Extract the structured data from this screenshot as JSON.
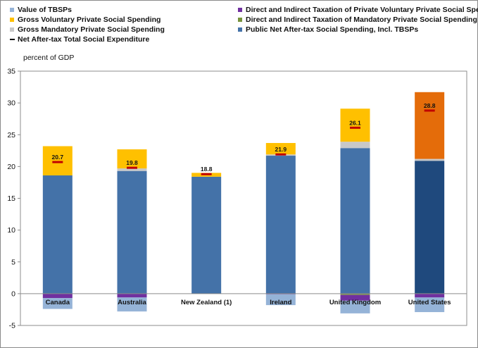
{
  "chart_data": {
    "type": "bar",
    "stacked": true,
    "ylabel": "percent of GDP",
    "ylim": [
      -5,
      35
    ],
    "yticks": [
      "35",
      "30",
      "25",
      "20",
      "15",
      "10",
      "5",
      "0",
      "-5"
    ],
    "categories": [
      "Canada",
      "Australia",
      "New Zealand (1)",
      "Ireland",
      "United Kingdom",
      "United States"
    ],
    "legend": [
      {
        "key": "tbsp",
        "label": "Value of TBSPs",
        "color": "#95b3d7",
        "kind": "box"
      },
      {
        "key": "gvol",
        "label": "Gross Voluntary Private Social Spending",
        "color": "#ffc000",
        "kind": "box"
      },
      {
        "key": "gmand",
        "label": "Gross Mandatory Private Social Spending",
        "color": "#c8c8c8",
        "kind": "box"
      },
      {
        "key": "net",
        "label": "Net After-tax Total Social Expenditure",
        "color": "#111111",
        "kind": "line"
      },
      {
        "key": "taxvol",
        "label": "Direct and Indirect Taxation of Private Voluntary Private Social Spending",
        "color": "#7030a0",
        "kind": "box"
      },
      {
        "key": "taxmand",
        "label": "Direct and Indirect Taxation of Mandatory Private Social Spending",
        "color": "#77933c",
        "kind": "box"
      },
      {
        "key": "pub",
        "label": "Public Net After-tax Social Spending, Incl. TBSPs",
        "color": "#4472a8",
        "kind": "box"
      }
    ],
    "colors": {
      "public": "#4472a8",
      "public_us": "#1f497d",
      "mandatory": "#c8c8c8",
      "voluntary": "#ffc000",
      "voluntary_us": "#e46c0a",
      "tax_voluntary": "#7030a0",
      "tax_mandatory": "#77933c",
      "tbsp": "#95b3d7",
      "marker": "#c00000"
    },
    "series": [
      {
        "name": "Public Net After-tax Social Spending, Incl. TBSPs",
        "values": [
          18.6,
          19.3,
          18.4,
          21.7,
          22.9,
          20.9
        ]
      },
      {
        "name": "Gross Mandatory Private Social Spending",
        "values": [
          0.0,
          0.4,
          0.0,
          0.2,
          1.0,
          0.3
        ]
      },
      {
        "name": "Gross Voluntary Private Social Spending",
        "values": [
          4.6,
          3.0,
          0.6,
          1.8,
          5.2,
          10.5
        ]
      },
      {
        "name": "Direct and Indirect Taxation of Private Voluntary Private Social Spending",
        "values": [
          -0.7,
          -0.6,
          0.0,
          -0.1,
          -0.9,
          -0.6
        ]
      },
      {
        "name": "Direct and Indirect Taxation of Mandatory Private Social Spending",
        "values": [
          0.0,
          0.0,
          0.0,
          0.0,
          -0.2,
          0.0
        ]
      },
      {
        "name": "Value of TBSPs",
        "values": [
          -1.7,
          -2.2,
          0.0,
          -1.7,
          -2.0,
          -2.3
        ]
      }
    ],
    "net_total": {
      "name": "Net After-tax Total Social Expenditure",
      "values": [
        20.7,
        19.8,
        18.8,
        21.9,
        26.1,
        28.8
      ],
      "labels": [
        "20.7",
        "19.8",
        "18.8",
        "21.9",
        "26.1",
        "28.8"
      ]
    }
  }
}
